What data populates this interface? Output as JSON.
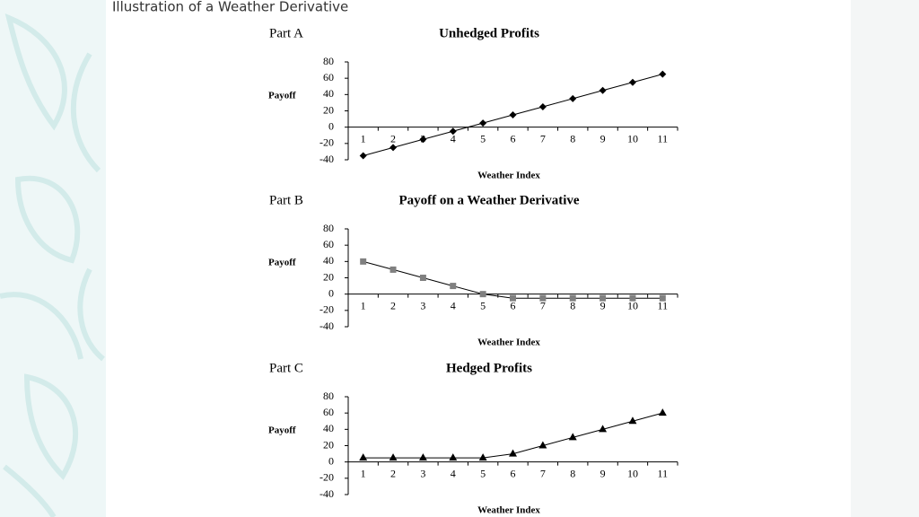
{
  "title": "Illustration of a Weather Derivative",
  "chart_data": [
    {
      "type": "line",
      "part": "Part A",
      "title": "Unhedged Profits",
      "ylabel": "Payoff",
      "xlabel": "Weather Index",
      "categories": [
        "1",
        "2",
        "3",
        "4",
        "5",
        "6",
        "7",
        "8",
        "9",
        "10",
        "11"
      ],
      "values": [
        -35,
        -25,
        -15,
        -5,
        5,
        15,
        25,
        35,
        45,
        55,
        65
      ],
      "marker": "diamond",
      "color": "#000000",
      "ylim": [
        -40,
        80
      ],
      "yticks": [
        -40,
        -20,
        0,
        20,
        40,
        60,
        80
      ]
    },
    {
      "type": "line",
      "part": "Part B",
      "title": "Payoff on a Weather Derivative",
      "ylabel": "Payoff",
      "xlabel": "Weather Index",
      "categories": [
        "1",
        "2",
        "3",
        "4",
        "5",
        "6",
        "7",
        "8",
        "9",
        "10",
        "11"
      ],
      "values": [
        40,
        30,
        20,
        10,
        0,
        -5,
        -5,
        -5,
        -5,
        -5,
        -5
      ],
      "marker": "square",
      "color": "#808080",
      "ylim": [
        -40,
        80
      ],
      "yticks": [
        -40,
        -20,
        0,
        20,
        40,
        60,
        80
      ]
    },
    {
      "type": "line",
      "part": "Part C",
      "title": "Hedged Profits",
      "ylabel": "Payoff",
      "xlabel": "Weather Index",
      "categories": [
        "1",
        "2",
        "3",
        "4",
        "5",
        "6",
        "7",
        "8",
        "9",
        "10",
        "11"
      ],
      "values": [
        5,
        5,
        5,
        5,
        5,
        10,
        20,
        30,
        40,
        50,
        60
      ],
      "marker": "triangle",
      "color": "#000000",
      "ylim": [
        -40,
        80
      ],
      "yticks": [
        -40,
        -20,
        0,
        20,
        40,
        60,
        80
      ]
    }
  ]
}
